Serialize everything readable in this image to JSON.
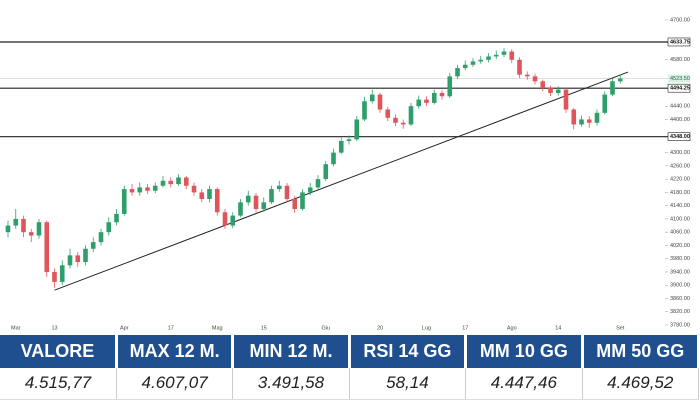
{
  "chart_data": {
    "type": "candlestick",
    "categories": [
      null,
      "Mar",
      null,
      null,
      null,
      null,
      "13",
      null,
      null,
      null,
      null,
      null,
      null,
      null,
      null,
      "Apr",
      null,
      null,
      null,
      null,
      null,
      "17",
      null,
      null,
      null,
      null,
      null,
      "Mag",
      null,
      null,
      null,
      null,
      null,
      "15",
      null,
      null,
      null,
      null,
      null,
      null,
      null,
      "Giu",
      null,
      null,
      null,
      null,
      null,
      null,
      "20",
      null,
      null,
      null,
      null,
      null,
      "Lug",
      null,
      null,
      null,
      null,
      "17",
      null,
      null,
      null,
      null,
      null,
      "Ago",
      null,
      null,
      null,
      null,
      null,
      "14",
      null,
      null,
      null,
      null,
      null,
      null,
      null,
      "Set"
    ],
    "open": [
      4060,
      4080,
      4100,
      4060,
      4050,
      4090,
      3940,
      3910,
      3960,
      3990,
      3970,
      4010,
      4030,
      4060,
      4090,
      4115,
      4190,
      4180,
      4195,
      4185,
      4200,
      4215,
      4205,
      4225,
      4200,
      4180,
      4160,
      4190,
      4120,
      4080,
      4110,
      4150,
      4170,
      4130,
      4150,
      4190,
      4200,
      4160,
      4130,
      4180,
      4195,
      4220,
      4265,
      4300,
      4335,
      4340,
      4400,
      4455,
      4475,
      4430,
      4405,
      4390,
      4385,
      4440,
      4460,
      4450,
      4480,
      4470,
      4530,
      4555,
      4565,
      4575,
      4580,
      4590,
      4595,
      4605,
      4580,
      4535,
      4530,
      4515,
      4495,
      4480,
      4490,
      4430,
      4385,
      4400,
      4390,
      4420,
      4475,
      4515
    ],
    "high": [
      4095,
      4130,
      4110,
      4070,
      4100,
      4095,
      3950,
      3975,
      4010,
      4000,
      4020,
      4045,
      4070,
      4105,
      4130,
      4200,
      4205,
      4210,
      4205,
      4210,
      4230,
      4225,
      4235,
      4230,
      4210,
      4190,
      4200,
      4195,
      4130,
      4120,
      4160,
      4185,
      4178,
      4165,
      4200,
      4215,
      4208,
      4170,
      4190,
      4208,
      4232,
      4275,
      4312,
      4345,
      4352,
      4410,
      4468,
      4490,
      4480,
      4438,
      4415,
      4400,
      4450,
      4472,
      4470,
      4490,
      4488,
      4540,
      4565,
      4578,
      4585,
      4592,
      4600,
      4608,
      4615,
      4612,
      4588,
      4545,
      4538,
      4520,
      4502,
      4500,
      4495,
      4435,
      4412,
      4410,
      4430,
      4485,
      4525,
      4535
    ],
    "low": [
      4045,
      4070,
      4045,
      4030,
      4040,
      3925,
      3892,
      3900,
      3950,
      3955,
      3960,
      4000,
      4020,
      4050,
      4080,
      4110,
      4170,
      4170,
      4175,
      4178,
      4195,
      4195,
      4200,
      4190,
      4170,
      4150,
      4150,
      4110,
      4070,
      4072,
      4105,
      4140,
      4120,
      4122,
      4145,
      4182,
      4150,
      4118,
      4125,
      4172,
      4188,
      4215,
      4258,
      4295,
      4325,
      4335,
      4395,
      4448,
      4420,
      4395,
      4380,
      4372,
      4380,
      4432,
      4440,
      4445,
      4460,
      4465,
      4522,
      4548,
      4558,
      4568,
      4572,
      4582,
      4588,
      4570,
      4525,
      4520,
      4505,
      4485,
      4470,
      4472,
      4420,
      4370,
      4378,
      4375,
      4382,
      4415,
      4470,
      4508
    ],
    "close": [
      4080,
      4100,
      4060,
      4050,
      4090,
      3940,
      3910,
      3960,
      3990,
      3970,
      4010,
      4030,
      4060,
      4090,
      4115,
      4190,
      4180,
      4195,
      4185,
      4200,
      4215,
      4205,
      4225,
      4200,
      4180,
      4160,
      4190,
      4120,
      4080,
      4110,
      4150,
      4170,
      4130,
      4150,
      4190,
      4200,
      4160,
      4130,
      4180,
      4195,
      4220,
      4265,
      4300,
      4335,
      4340,
      4400,
      4455,
      4475,
      4430,
      4405,
      4390,
      4385,
      4440,
      4460,
      4450,
      4480,
      4470,
      4530,
      4555,
      4565,
      4575,
      4580,
      4590,
      4595,
      4605,
      4580,
      4535,
      4530,
      4515,
      4495,
      4480,
      4490,
      4430,
      4385,
      4400,
      4390,
      4420,
      4475,
      4515,
      4523.5
    ],
    "up_color": "#2e9e6a",
    "down_color": "#e0555a",
    "ylim": [
      3780,
      4700
    ],
    "yticks": [
      {
        "value": 3780,
        "label": "3780.00"
      },
      {
        "value": 3820,
        "label": "3820.00"
      },
      {
        "value": 3860,
        "label": "3860.00"
      },
      {
        "value": 3900,
        "label": "3900.00"
      },
      {
        "value": 3940,
        "label": "3940.00"
      },
      {
        "value": 3980,
        "label": "3980.00"
      },
      {
        "value": 4020,
        "label": "4020.00"
      },
      {
        "value": 4060,
        "label": "4060.00"
      },
      {
        "value": 4100,
        "label": "4100.00"
      },
      {
        "value": 4140,
        "label": "4140.00"
      },
      {
        "value": 4180,
        "label": "4180.00"
      },
      {
        "value": 4220,
        "label": "4220.00"
      },
      {
        "value": 4260,
        "label": "4260.00"
      },
      {
        "value": 4300,
        "label": "4300.00"
      },
      {
        "value": 4400,
        "label": "4400.00"
      },
      {
        "value": 4440,
        "label": "4440.00"
      },
      {
        "value": 4580,
        "label": "4580.00"
      },
      {
        "value": 4700,
        "label": "4700.00"
      }
    ],
    "levels": [
      {
        "value": 4633.75,
        "label": "4633.75"
      },
      {
        "value": 4494.25,
        "label": "4494.25"
      },
      {
        "value": 4348,
        "label": "4348.00"
      }
    ],
    "price_tag": {
      "value": 4523.5,
      "label": "4523.50"
    },
    "trendline": {
      "x": [
        6,
        80
      ],
      "values": [
        3885,
        4543
      ]
    }
  },
  "table": {
    "headers": [
      "VALORE",
      "MAX 12 M.",
      "MIN 12 M.",
      "RSI 14 GG",
      "MM 10 GG",
      "MM 50 GG"
    ],
    "rows": [
      [
        "4.515,77",
        "4.607,07",
        "3.491,58",
        "58,14",
        "4.447,46",
        "4.469,52"
      ]
    ]
  }
}
